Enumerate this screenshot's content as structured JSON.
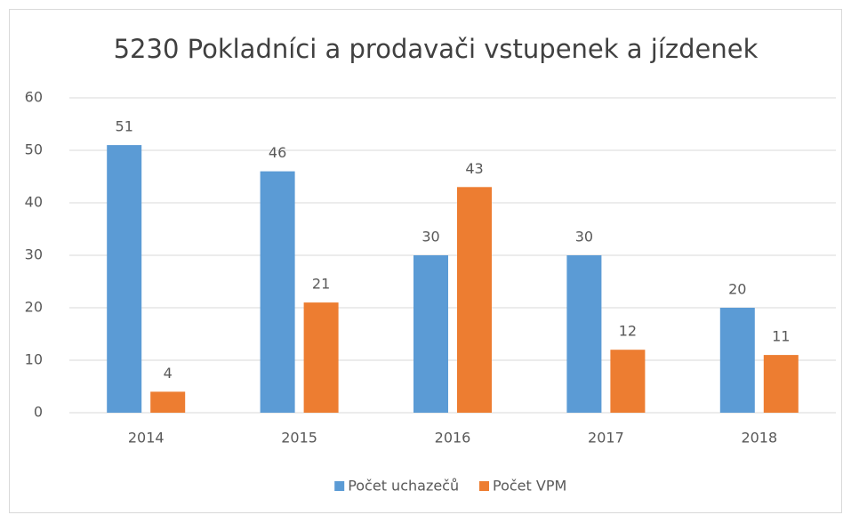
{
  "chart_data": {
    "type": "bar",
    "title": "5230 Pokladníci a prodavači vstupenek a jízdenek",
    "categories": [
      "2014",
      "2015",
      "2016",
      "2017",
      "2018"
    ],
    "series": [
      {
        "name": "Počet uchazečů",
        "color": "#5b9bd5",
        "values": [
          51,
          46,
          30,
          30,
          20
        ]
      },
      {
        "name": "Počet VPM",
        "color": "#ed7d31",
        "values": [
          4,
          21,
          43,
          12,
          11
        ]
      }
    ],
    "ylim": [
      0,
      60
    ],
    "yticks": [
      0,
      10,
      20,
      30,
      40,
      50,
      60
    ],
    "grid": true,
    "legend": "bottom"
  }
}
